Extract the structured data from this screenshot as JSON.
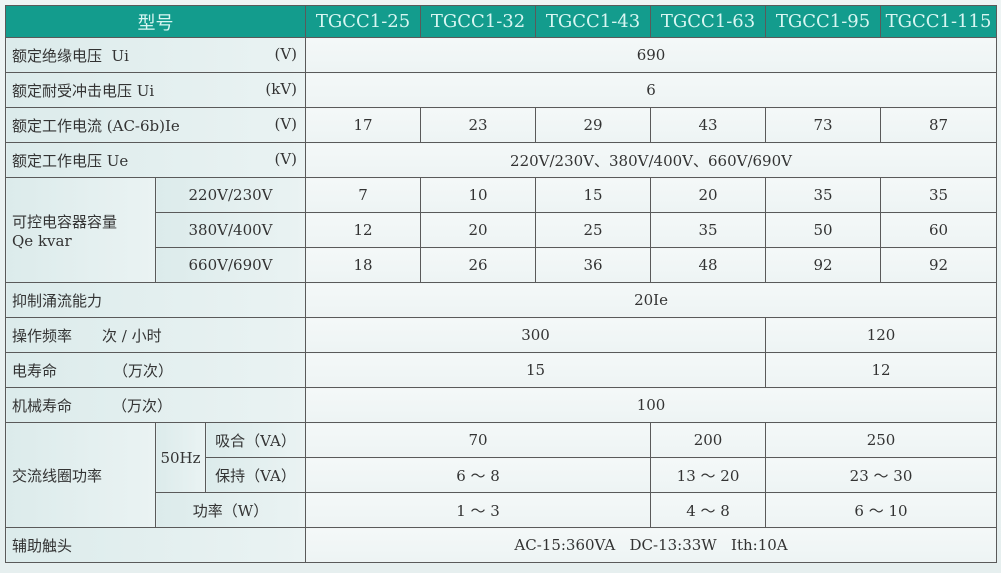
{
  "header": {
    "model_label": "型号",
    "models": [
      "TGCC1-25",
      "TGCC1-32",
      "TGCC1-43",
      "TGCC1-63",
      "TGCC1-95",
      "TGCC1-115"
    ]
  },
  "rows": {
    "insulation": {
      "label": "额定绝缘电压  Ui",
      "unit": "(V)",
      "value": "690"
    },
    "impulse": {
      "label": "额定耐受冲击电压 Ui",
      "unit": "(kV)",
      "value": "6"
    },
    "current": {
      "label": "额定工作电流 (AC-6b)Ie",
      "unit": "(V)",
      "values": [
        "17",
        "23",
        "29",
        "43",
        "73",
        "87"
      ]
    },
    "voltage": {
      "label": "额定工作电压 Ue",
      "unit": "(V)",
      "value": "220V/230V、380V/400V、660V/690V"
    },
    "capacity": {
      "label1": "可控电容器容量",
      "label2": "Qe kvar",
      "rows": [
        {
          "voltage": "220V/230V",
          "values": [
            "7",
            "10",
            "15",
            "20",
            "35",
            "35"
          ]
        },
        {
          "voltage": "380V/400V",
          "values": [
            "12",
            "20",
            "25",
            "35",
            "50",
            "60"
          ]
        },
        {
          "voltage": "660V/690V",
          "values": [
            "18",
            "26",
            "36",
            "48",
            "92",
            "92"
          ]
        }
      ]
    },
    "inrush": {
      "label": "抑制涌流能力",
      "value": "20Ie"
    },
    "frequency": {
      "label": "操作频率",
      "unit": "次 / 小时",
      "values": [
        "300",
        "120"
      ]
    },
    "elec_life": {
      "label": "电寿命",
      "unit": "（万次）",
      "values": [
        "15",
        "12"
      ]
    },
    "mech_life": {
      "label": "机械寿命",
      "unit": "（万次）",
      "value": "100"
    },
    "coil": {
      "label": "交流线圈功率",
      "freq": "50Hz",
      "pickup": {
        "label": "吸合（VA）",
        "values": [
          "70",
          "200",
          "250"
        ]
      },
      "hold": {
        "label": "保持（VA）",
        "values": [
          "6 ～ 8",
          "13 ～ 20",
          "23 ～ 30"
        ]
      },
      "power": {
        "label": "功率（W）",
        "values": [
          "1 ～ 3",
          "4 ～ 8",
          "6 ～ 10"
        ]
      }
    },
    "aux": {
      "label": "辅助触头",
      "value": "AC-15:360VA   DC-13:33W   Ith:10A"
    }
  }
}
